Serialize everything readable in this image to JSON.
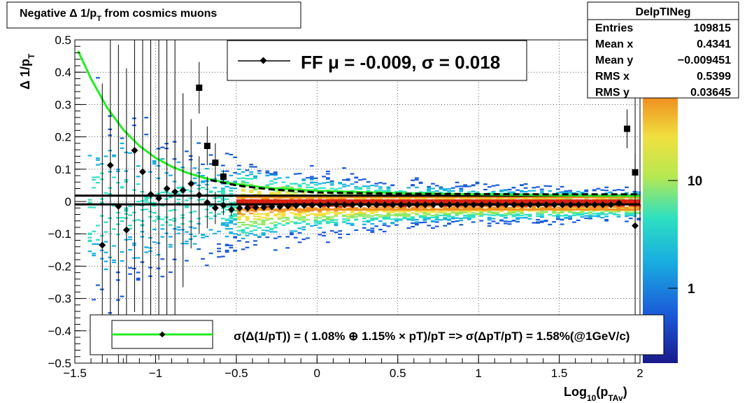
{
  "title_box": {
    "text": "Negative Δ 1/p",
    "sub": "T",
    "rest": " from cosmics muons"
  },
  "stats": {
    "name": "DelpTINeg",
    "rows": [
      {
        "label": "Entries",
        "value": "109815"
      },
      {
        "label": "Mean x",
        "value": "0.4341"
      },
      {
        "label": "Mean y",
        "value": "−0.009451"
      },
      {
        "label": "RMS x",
        "value": "0.5399"
      },
      {
        "label": "RMS y",
        "value": "0.03645"
      }
    ]
  },
  "fit_legend": "FF μ = -0.009, σ =   0.018",
  "resolution_legend": "σ(Δ(1/pT)) = ( 1.08% ⊕  1.15% × pT)/pT => σ(ΔpT/pT) =  1.58%(@1GeV/c)",
  "colors": {
    "fit_curve": "#22ee22",
    "markers": "#000000"
  },
  "colorbar_labels": [
    {
      "value": 10,
      "text": "10"
    },
    {
      "value": 1,
      "text": "1"
    }
  ],
  "chart_data": {
    "type": "scatter",
    "xlabel": {
      "main": "Log",
      "sub1": "10",
      "mid": "(p",
      "sub2": "TAv",
      "end": ")"
    },
    "ylabel": {
      "main": "Δ 1/p",
      "sub": "T"
    },
    "xlim": [
      -1.5,
      2.0
    ],
    "ylim": [
      -0.5,
      0.5
    ],
    "xticks": [
      {
        "v": -1.5,
        "t": "−1.5"
      },
      {
        "v": -1,
        "t": "−1"
      },
      {
        "v": -0.5,
        "t": "−0.5"
      },
      {
        "v": 0,
        "t": "0"
      },
      {
        "v": 0.5,
        "t": "0.5"
      },
      {
        "v": 1,
        "t": "1"
      },
      {
        "v": 1.5,
        "t": "1.5"
      },
      {
        "v": 2,
        "t": "2"
      }
    ],
    "yticks": [
      {
        "v": -0.5,
        "t": "−0.5"
      },
      {
        "v": -0.4,
        "t": "−0.4"
      },
      {
        "v": -0.3,
        "t": "−0.3"
      },
      {
        "v": -0.2,
        "t": "−0.2"
      },
      {
        "v": -0.1,
        "t": "−0.1"
      },
      {
        "v": 0,
        "t": "0"
      },
      {
        "v": 0.1,
        "t": "0.1"
      },
      {
        "v": 0.2,
        "t": "0.2"
      },
      {
        "v": 0.3,
        "t": "0.3"
      },
      {
        "v": 0.4,
        "t": "0.4"
      },
      {
        "v": 0.5,
        "t": "0.5"
      }
    ],
    "grid": true,
    "mean_points": [
      {
        "x": -1.33,
        "y": -0.135,
        "e": 0.5
      },
      {
        "x": -1.28,
        "y": 0.112,
        "e": 0.5
      },
      {
        "x": -1.23,
        "y": -0.015,
        "e": 0.5
      },
      {
        "x": -1.18,
        "y": -0.088,
        "e": 0.5
      },
      {
        "x": -1.13,
        "y": 0.158,
        "e": 0.5
      },
      {
        "x": -1.08,
        "y": 0.092,
        "e": 0.5
      },
      {
        "x": -1.03,
        "y": 0.022,
        "e": 0.5
      },
      {
        "x": -0.98,
        "y": 0.01,
        "e": 0.5
      },
      {
        "x": -0.93,
        "y": 0.04,
        "e": 0.5
      },
      {
        "x": -0.88,
        "y": 0.03,
        "e": 0.5
      },
      {
        "x": -0.83,
        "y": 0.035,
        "e": 0.3
      },
      {
        "x": -0.78,
        "y": 0.055,
        "e": 0.2
      },
      {
        "x": -0.73,
        "y": 0.02,
        "e": 0.12
      },
      {
        "x": -0.68,
        "y": -0.003,
        "e": 0.08
      },
      {
        "x": -0.63,
        "y": -0.02,
        "e": 0.05
      },
      {
        "x": -0.58,
        "y": -0.012,
        "e": 0.03
      },
      {
        "x": -0.53,
        "y": -0.025,
        "e": 0.02
      },
      {
        "x": -0.48,
        "y": -0.02,
        "e": 0.01
      },
      {
        "x": -0.43,
        "y": -0.02,
        "e": 0.01
      },
      {
        "x": -0.38,
        "y": -0.018,
        "e": 0.005
      },
      {
        "x": -0.33,
        "y": -0.018,
        "e": 0.004
      },
      {
        "x": -0.28,
        "y": -0.016,
        "e": 0.004
      },
      {
        "x": -0.23,
        "y": -0.016,
        "e": 0.003
      },
      {
        "x": -0.18,
        "y": -0.014,
        "e": 0.003
      },
      {
        "x": -0.13,
        "y": -0.013,
        "e": 0.003
      },
      {
        "x": -0.08,
        "y": -0.012,
        "e": 0.003
      },
      {
        "x": -0.03,
        "y": -0.011,
        "e": 0.003
      },
      {
        "x": 0.02,
        "y": -0.011,
        "e": 0.003
      },
      {
        "x": 0.07,
        "y": -0.01,
        "e": 0.003
      },
      {
        "x": 0.12,
        "y": -0.01,
        "e": 0.003
      },
      {
        "x": 0.17,
        "y": -0.01,
        "e": 0.003
      },
      {
        "x": 0.22,
        "y": -0.01,
        "e": 0.003
      },
      {
        "x": 0.27,
        "y": -0.01,
        "e": 0.003
      },
      {
        "x": 0.32,
        "y": -0.01,
        "e": 0.003
      },
      {
        "x": 0.37,
        "y": -0.01,
        "e": 0.003
      },
      {
        "x": 0.42,
        "y": -0.01,
        "e": 0.003
      },
      {
        "x": 0.47,
        "y": -0.01,
        "e": 0.003
      },
      {
        "x": 0.52,
        "y": -0.01,
        "e": 0.003
      },
      {
        "x": 0.57,
        "y": -0.01,
        "e": 0.003
      },
      {
        "x": 0.62,
        "y": -0.01,
        "e": 0.003
      },
      {
        "x": 0.67,
        "y": -0.01,
        "e": 0.003
      },
      {
        "x": 0.72,
        "y": -0.01,
        "e": 0.003
      },
      {
        "x": 0.77,
        "y": -0.01,
        "e": 0.003
      },
      {
        "x": 0.82,
        "y": -0.01,
        "e": 0.003
      },
      {
        "x": 0.87,
        "y": -0.01,
        "e": 0.003
      },
      {
        "x": 0.92,
        "y": -0.01,
        "e": 0.003
      },
      {
        "x": 0.97,
        "y": -0.01,
        "e": 0.003
      },
      {
        "x": 1.02,
        "y": -0.01,
        "e": 0.003
      },
      {
        "x": 1.07,
        "y": -0.01,
        "e": 0.003
      },
      {
        "x": 1.12,
        "y": -0.01,
        "e": 0.003
      },
      {
        "x": 1.17,
        "y": -0.01,
        "e": 0.003
      },
      {
        "x": 1.22,
        "y": -0.01,
        "e": 0.003
      },
      {
        "x": 1.27,
        "y": -0.01,
        "e": 0.003
      },
      {
        "x": 1.32,
        "y": -0.01,
        "e": 0.003
      },
      {
        "x": 1.37,
        "y": -0.01,
        "e": 0.003
      },
      {
        "x": 1.42,
        "y": -0.01,
        "e": 0.003
      },
      {
        "x": 1.47,
        "y": -0.01,
        "e": 0.003
      },
      {
        "x": 1.52,
        "y": -0.01,
        "e": 0.003
      },
      {
        "x": 1.57,
        "y": -0.01,
        "e": 0.003
      },
      {
        "x": 1.62,
        "y": -0.01,
        "e": 0.004
      },
      {
        "x": 1.67,
        "y": -0.01,
        "e": 0.004
      },
      {
        "x": 1.72,
        "y": -0.01,
        "e": 0.004
      },
      {
        "x": 1.77,
        "y": -0.01,
        "e": 0.005
      },
      {
        "x": 1.82,
        "y": -0.01,
        "e": 0.005
      },
      {
        "x": 1.87,
        "y": -0.005,
        "e": 0.01
      },
      {
        "x": 1.97,
        "y": -0.075,
        "e": 0.5
      }
    ],
    "sigma_points": [
      {
        "x": -0.73,
        "y": 0.352,
        "e": 0.08
      },
      {
        "x": -0.68,
        "y": 0.172,
        "e": 0.06
      },
      {
        "x": -0.63,
        "y": 0.12,
        "e": 0.06
      },
      {
        "x": -0.58,
        "y": 0.077,
        "e": 0.02
      },
      {
        "x": 1.92,
        "y": 0.225,
        "e": 0.06
      },
      {
        "x": 1.97,
        "y": 0.09,
        "e": 0.06
      }
    ],
    "fit_curve": [
      {
        "x": -1.48,
        "y": 0.466
      },
      {
        "x": -1.4,
        "y": 0.38
      },
      {
        "x": -1.3,
        "y": 0.29
      },
      {
        "x": -1.2,
        "y": 0.222
      },
      {
        "x": -1.1,
        "y": 0.172
      },
      {
        "x": -1.0,
        "y": 0.135
      },
      {
        "x": -0.9,
        "y": 0.108
      },
      {
        "x": -0.8,
        "y": 0.088
      },
      {
        "x": -0.7,
        "y": 0.073
      },
      {
        "x": -0.6,
        "y": 0.062
      },
      {
        "x": -0.5,
        "y": 0.054
      },
      {
        "x": -0.3,
        "y": 0.042
      },
      {
        "x": 0.0,
        "y": 0.033
      },
      {
        "x": 0.5,
        "y": 0.026
      },
      {
        "x": 1.0,
        "y": 0.022
      },
      {
        "x": 1.5,
        "y": 0.019
      },
      {
        "x": 2.0,
        "y": 0.017
      }
    ],
    "dashed_curve": [
      {
        "x": -0.66,
        "y": 0.066
      },
      {
        "x": -0.5,
        "y": 0.05
      },
      {
        "x": -0.3,
        "y": 0.038
      },
      {
        "x": 0.0,
        "y": 0.028
      },
      {
        "x": 0.5,
        "y": 0.024
      },
      {
        "x": 1.0,
        "y": 0.023
      },
      {
        "x": 1.5,
        "y": 0.022
      },
      {
        "x": 2.0,
        "y": 0.022
      }
    ],
    "hlines": [
      0.018,
      -0.009
    ]
  }
}
